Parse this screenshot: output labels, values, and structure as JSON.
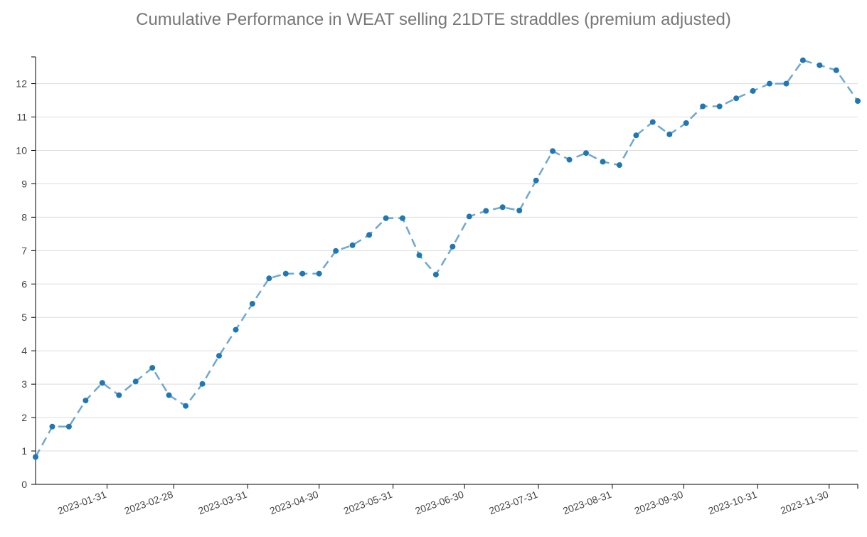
{
  "chart_data": {
    "type": "line",
    "title": "Cumulative Performance in WEAT selling 21DTE straddles (premium adjusted)",
    "xlabel": "",
    "ylabel": "",
    "ylim": [
      0,
      12.8
    ],
    "y_ticks": [
      "0",
      "1",
      "2",
      "3",
      "4",
      "5",
      "6",
      "7",
      "8",
      "9",
      "10",
      "11",
      "12"
    ],
    "x_range": [
      "2023-01-01",
      "2023-12-12"
    ],
    "x_ticks": [
      "2023-01-31",
      "2023-02-28",
      "2023-03-31",
      "2023-04-30",
      "2023-05-31",
      "2023-06-30",
      "2023-07-31",
      "2023-08-31",
      "2023-09-30",
      "2023-10-31",
      "2023-11-30"
    ],
    "grid": true,
    "legend": "none",
    "line_style": "dashed",
    "colors": {
      "line": "#6fa8cf",
      "marker": "#1f77b4",
      "grid": "#dddddd",
      "axis": "#000000",
      "tick_text": "#444444",
      "title": "#777777"
    },
    "series": [
      {
        "x": [
          "2023-01-01",
          "2023-01-08",
          "2023-01-15",
          "2023-01-22",
          "2023-01-29",
          "2023-02-05",
          "2023-02-12",
          "2023-02-19",
          "2023-02-26",
          "2023-03-05",
          "2023-03-12",
          "2023-03-19",
          "2023-03-26",
          "2023-04-02",
          "2023-04-09",
          "2023-04-16",
          "2023-04-23",
          "2023-04-30",
          "2023-05-07",
          "2023-05-14",
          "2023-05-21",
          "2023-05-28",
          "2023-06-04",
          "2023-06-11",
          "2023-06-18",
          "2023-06-25",
          "2023-07-02",
          "2023-07-09",
          "2023-07-16",
          "2023-07-23",
          "2023-07-30",
          "2023-08-06",
          "2023-08-13",
          "2023-08-20",
          "2023-08-27",
          "2023-09-03",
          "2023-09-10",
          "2023-09-17",
          "2023-09-24",
          "2023-10-01",
          "2023-10-08",
          "2023-10-15",
          "2023-10-22",
          "2023-10-29",
          "2023-11-05",
          "2023-11-12",
          "2023-11-19",
          "2023-11-26",
          "2023-12-03",
          "2023-12-12"
        ],
        "values": [
          0.82,
          1.73,
          1.73,
          2.51,
          3.04,
          2.67,
          3.08,
          3.49,
          2.67,
          2.35,
          3.01,
          3.85,
          4.63,
          5.41,
          6.17,
          6.31,
          6.31,
          6.31,
          6.99,
          7.16,
          7.47,
          7.97,
          7.97,
          6.86,
          6.28,
          7.12,
          8.02,
          8.19,
          8.3,
          8.2,
          9.1,
          9.98,
          9.72,
          9.92,
          9.66,
          9.56,
          10.45,
          10.85,
          10.48,
          10.82,
          11.32,
          11.32,
          11.56,
          11.78,
          12.0,
          12.0,
          12.7,
          12.55,
          12.4,
          11.48
        ]
      }
    ]
  }
}
